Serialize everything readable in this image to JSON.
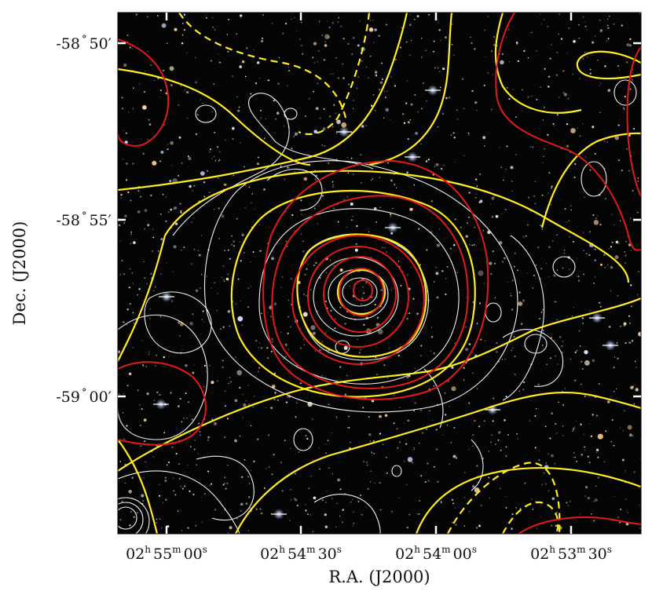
{
  "figure": {
    "x_axis": {
      "label": "R.A. (J2000)",
      "ticks": [
        {
          "h": "02",
          "m": "55",
          "s": "00"
        },
        {
          "h": "02",
          "m": "54",
          "s": "30"
        },
        {
          "h": "02",
          "m": "54",
          "s": "00"
        },
        {
          "h": "02",
          "m": "53",
          "s": "30"
        }
      ],
      "unit_h": "h",
      "unit_m": "m",
      "unit_s": "s"
    },
    "y_axis": {
      "label": "Dec. (J2000)",
      "ticks": [
        {
          "deg": "-58",
          "min": "50"
        },
        {
          "deg": "-58",
          "min": "55"
        },
        {
          "deg": "-59",
          "min": "00"
        }
      ],
      "deg_symbol": "°",
      "min_symbol": "′"
    },
    "background": "optical color composite star field",
    "contour_colors": {
      "white": "#ffffff",
      "yellow": "#ffee22",
      "red": "#e31a1c"
    }
  }
}
